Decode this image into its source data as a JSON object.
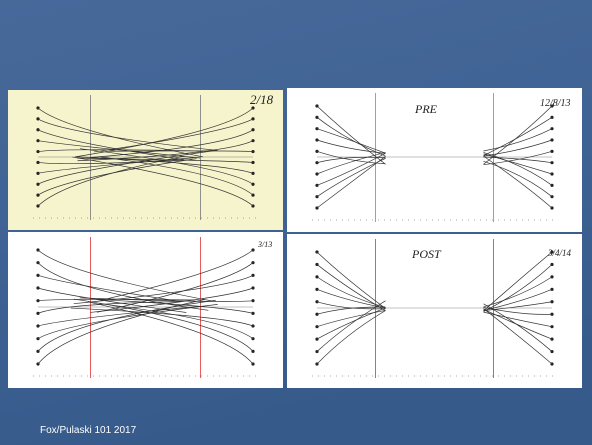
{
  "footer": "Fox/Pulaski 101 2017",
  "panels": [
    {
      "date": "2/18"
    },
    {
      "label": "PRE",
      "date": "12/8/13"
    },
    {
      "date": "3/13"
    },
    {
      "label": "POST",
      "date": "3/4/14"
    }
  ]
}
